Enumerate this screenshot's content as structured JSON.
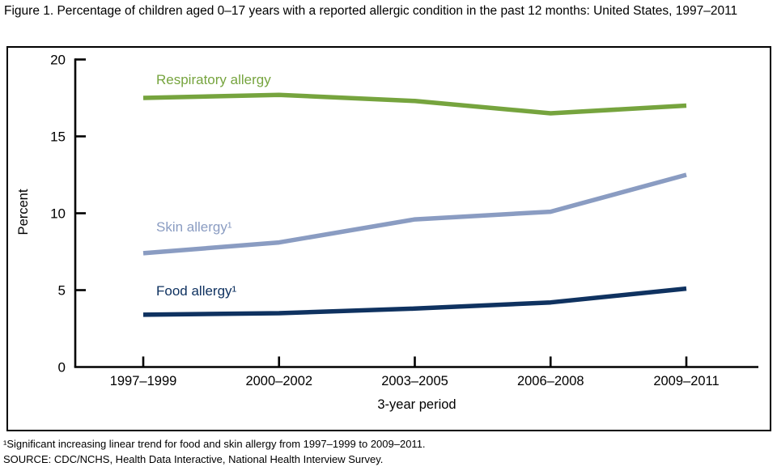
{
  "figure": {
    "title": "Figure 1. Percentage of children aged 0–17 years with a reported allergic condition in the past 12 months: United States, 1997–2011"
  },
  "chart_data": {
    "type": "line",
    "categories": [
      "1997–1999",
      "2000–2002",
      "2003–2005",
      "2006–2008",
      "2009–2011"
    ],
    "series": [
      {
        "name": "respiratory-allergy",
        "label": "Respiratory allergy",
        "color": "#76a43e",
        "values": [
          17.5,
          17.7,
          17.3,
          16.5,
          17.0
        ]
      },
      {
        "name": "skin-allergy",
        "label": "Skin allergy¹",
        "color": "#8a9cc2",
        "values": [
          7.4,
          8.1,
          9.6,
          10.1,
          12.5
        ]
      },
      {
        "name": "food-allergy",
        "label": "Food allergy¹",
        "color": "#0f3260",
        "values": [
          3.4,
          3.5,
          3.8,
          4.2,
          5.1
        ]
      }
    ],
    "xlabel": "3-year period",
    "ylabel": "Percent",
    "ylim": [
      0,
      20
    ],
    "yticks": [
      0,
      5,
      10,
      15,
      20
    ],
    "grid": false,
    "legend_position": "inline-labels",
    "axis_color": "#000000"
  },
  "footnotes": {
    "note1": "¹Significant increasing linear trend for food and skin allergy from 1997–1999 to 2009–2011.",
    "source": "SOURCE: CDC/NCHS, Health Data Interactive, National Health Interview Survey."
  }
}
